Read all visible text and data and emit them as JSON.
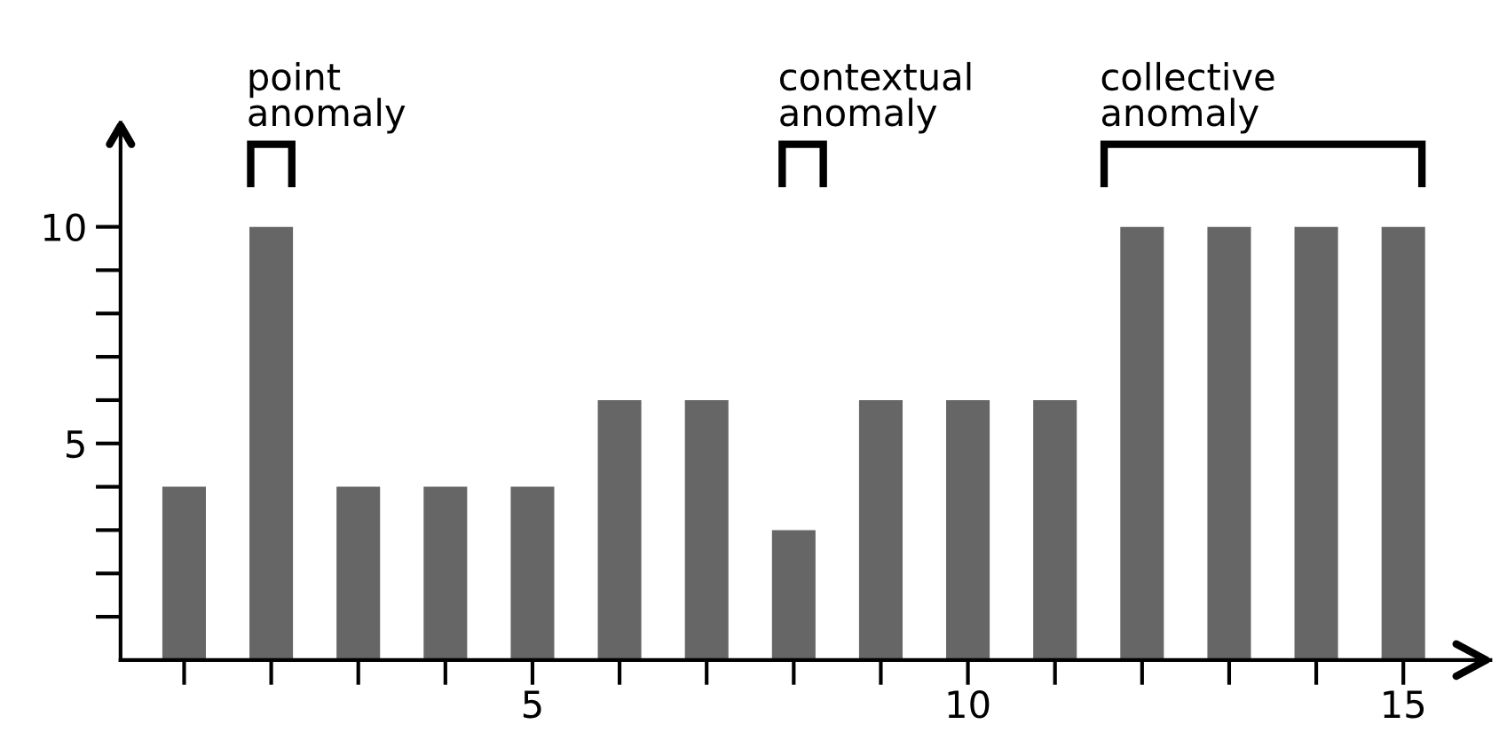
{
  "chart_data": {
    "type": "bar",
    "x": [
      1,
      2,
      3,
      4,
      5,
      6,
      7,
      8,
      9,
      10,
      11,
      12,
      13,
      14,
      15
    ],
    "values": [
      4,
      10,
      4,
      4,
      4,
      6,
      6,
      3,
      6,
      6,
      6,
      10,
      10,
      10,
      10
    ],
    "color": "#666666",
    "xlim": [
      0.27,
      16
    ],
    "ylim": [
      0,
      12.4
    ],
    "xticks": [
      {
        "value": 1,
        "label": null
      },
      {
        "value": 2,
        "label": null
      },
      {
        "value": 3,
        "label": null
      },
      {
        "value": 4,
        "label": null
      },
      5,
      {
        "value": 6,
        "label": null
      },
      {
        "value": 7,
        "label": null
      },
      {
        "value": 8,
        "label": null
      },
      {
        "value": 9,
        "label": null
      },
      10,
      {
        "value": 11,
        "label": null
      },
      {
        "value": 12,
        "label": null
      },
      {
        "value": 13,
        "label": null
      },
      {
        "value": 14,
        "label": null
      },
      15
    ],
    "yticks": [
      {
        "value": 1,
        "label": null
      },
      {
        "value": 2,
        "label": null
      },
      {
        "value": 3,
        "label": null
      },
      {
        "value": 4,
        "label": null
      },
      5,
      {
        "value": 6,
        "label": null
      },
      {
        "value": 7,
        "label": null
      },
      {
        "value": 8,
        "label": null
      },
      {
        "value": 9,
        "label": null
      },
      10
    ],
    "grid": false,
    "annotations": [
      "point\nanomaly",
      "contextual\nanomaly",
      "collective\nanomaly"
    ]
  }
}
